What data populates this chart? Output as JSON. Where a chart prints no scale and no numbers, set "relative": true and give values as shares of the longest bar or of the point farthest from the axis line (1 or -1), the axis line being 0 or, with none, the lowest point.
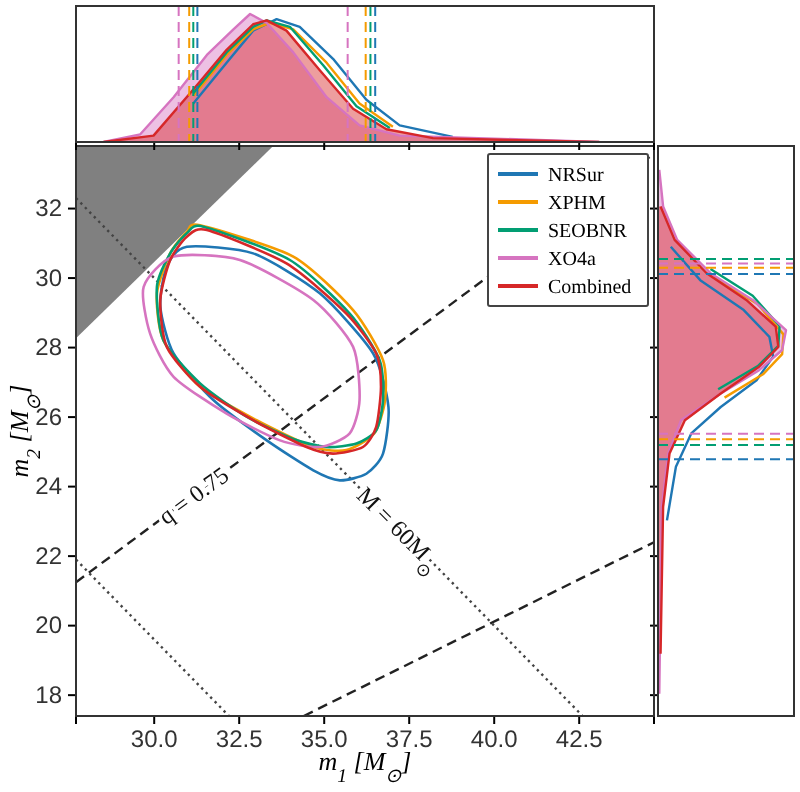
{
  "chart_data": [
    {
      "type": "line",
      "relative": true,
      "tick_labels": false,
      "legend": "bottom right",
      "xlim": [
        27.7,
        44.7
      ],
      "xticks": [
        30,
        32.5,
        35,
        37.5,
        40,
        42.5
      ],
      "series": [
        {
          "name": "NRSur",
          "color": "#1f77b4",
          "x": [
            31.15,
            32.13,
            32.91,
            33.6,
            34.28,
            35.26,
            36.24,
            37.22,
            38.78
          ],
          "values": [
            0.3,
            0.62,
            0.87,
            0.96,
            0.9,
            0.65,
            0.33,
            0.13,
            0.04
          ]
        },
        {
          "name": "XPHM",
          "color": "#f59b00",
          "x": [
            31.15,
            32.13,
            32.91,
            33.4,
            34.09,
            35.07,
            36.04,
            37.02
          ],
          "values": [
            0.36,
            0.68,
            0.88,
            0.93,
            0.88,
            0.62,
            0.3,
            0.12
          ]
        },
        {
          "name": "SEOBNR",
          "color": "#029e73",
          "x": [
            31.15,
            32.13,
            32.91,
            33.31,
            33.99,
            34.97,
            35.95,
            36.93
          ],
          "values": [
            0.38,
            0.7,
            0.9,
            0.95,
            0.9,
            0.6,
            0.28,
            0.11
          ]
        },
        {
          "name": "XO4a",
          "type": "area",
          "color": "#d674c0",
          "x": [
            28.51,
            29.59,
            30.57,
            31.55,
            32.33,
            32.82,
            33.31,
            34.09,
            35.07,
            36.04,
            37.22,
            43.09
          ],
          "values": [
            0,
            0.06,
            0.35,
            0.68,
            0.88,
            1,
            0.93,
            0.7,
            0.35,
            0.13,
            0.05,
            0
          ]
        },
        {
          "name": "Combined",
          "type": "area",
          "color": "#d62728",
          "x": [
            28.51,
            29.98,
            31.15,
            32.13,
            32.91,
            33.31,
            33.89,
            34.87,
            35.85,
            36.83,
            38.2,
            43.09
          ],
          "values": [
            0,
            0.05,
            0.41,
            0.72,
            0.92,
            0.95,
            0.87,
            0.56,
            0.26,
            0.1,
            0.03,
            0
          ]
        }
      ],
      "ref_lines": [
        {
          "axis": "x",
          "value": 30.72,
          "color": "#d674c0",
          "line_style": "dashed"
        },
        {
          "axis": "x",
          "value": 35.69,
          "color": "#d674c0",
          "line_style": "dashed"
        },
        {
          "axis": "x",
          "value": 31.03,
          "color": "#f59b00",
          "line_style": "dashed"
        },
        {
          "axis": "x",
          "value": 36.22,
          "color": "#f59b00",
          "line_style": "dashed"
        },
        {
          "axis": "x",
          "value": 31.15,
          "color": "#029e73",
          "line_style": "dashed"
        },
        {
          "axis": "x",
          "value": 36.36,
          "color": "#029e73",
          "line_style": "dashed"
        },
        {
          "axis": "x",
          "value": 31.27,
          "color": "#1f77b4",
          "line_style": "dashed"
        },
        {
          "axis": "x",
          "value": 36.5,
          "color": "#1f77b4",
          "line_style": "dashed"
        }
      ]
    },
    {
      "type": "line",
      "xlabel": "m$_{1}$ [M$_{⊙}$]",
      "ylabel": "m$_{2}$ [M$_{⊙}$]",
      "xlim": [
        27.7,
        44.7
      ],
      "ylim": [
        17.4,
        33.8
      ],
      "xticks": [
        {
          "value": 30,
          "label": "30.0"
        },
        {
          "value": 32.5,
          "label": "32.5"
        },
        {
          "value": 35,
          "label": "35.0"
        },
        {
          "value": 37.5,
          "label": "37.5"
        },
        {
          "value": 40,
          "label": "40.0"
        },
        {
          "value": 42.5,
          "label": "42.5"
        }
      ],
      "yticks": [
        18,
        20,
        22,
        24,
        26,
        28,
        30,
        32
      ],
      "series": [
        {
          "color": "#222222",
          "line_style": "dashed",
          "x": [
            27.7,
            44.7
          ],
          "values": [
            21.25,
            33.58
          ]
        },
        {
          "color": "#222222",
          "line_style": "dashed",
          "x": [
            34.4,
            44.7
          ],
          "values": [
            17.4,
            22.4
          ]
        },
        {
          "color": "#444444",
          "line_style": "dotted",
          "x": [
            27.7,
            42.6
          ],
          "values": [
            32.3,
            17.4
          ]
        },
        {
          "color": "#444444",
          "line_style": "dotted",
          "x": [
            27.7,
            32.2
          ],
          "values": [
            21.9,
            17.4
          ]
        }
      ],
      "annotations": [
        {
          "text": "q = 0.75",
          "x": 31.15,
          "y": 23.75
        },
        {
          "text": "M = 60M$_{⊙}$",
          "x": 37.22,
          "y": 22.78
        }
      ]
    },
    {
      "type": "line",
      "orientation": "horizontal",
      "relative": true,
      "tick_labels": false,
      "ylim": [
        17.4,
        33.8
      ],
      "yticks": [
        18,
        20,
        22,
        24,
        26,
        28,
        30,
        32
      ],
      "series": [
        {
          "color": "#1f77b4",
          "x": [
            30.9,
            29.94,
            29.08,
            28.31,
            27.74,
            27.06,
            26.29,
            25.53,
            24.57,
            23.03
          ],
          "values": [
            0.1,
            0.33,
            0.67,
            0.87,
            0.9,
            0.77,
            0.49,
            0.26,
            0.14,
            0.07
          ]
        },
        {
          "color": "#f59b00",
          "x": [
            30.02,
            29.25,
            28.38,
            27.81,
            27.23,
            26.56
          ],
          "values": [
            0.44,
            0.78,
            0.98,
            0.97,
            0.82,
            0.52
          ]
        },
        {
          "color": "#029e73",
          "x": [
            30.26,
            29.49,
            28.62,
            28.05,
            27.47,
            26.8
          ],
          "values": [
            0.41,
            0.74,
            0.95,
            0.94,
            0.78,
            0.47
          ]
        },
        {
          "type": "area",
          "color": "#d674c0",
          "x": [
            33.11,
            32.06,
            31.1,
            30.14,
            29.37,
            28.5,
            27.93,
            27.35,
            26.68,
            25.91,
            24.95,
            23.42,
            18.04
          ],
          "values": [
            0.01,
            0.04,
            0.15,
            0.41,
            0.74,
            1,
            0.97,
            0.79,
            0.49,
            0.18,
            0.08,
            0.03,
            0.01
          ]
        },
        {
          "type": "area",
          "color": "#d62728",
          "x": [
            32.06,
            31.1,
            30.14,
            29.37,
            28.6,
            28.02,
            27.45,
            26.68,
            25.91,
            24.95,
            23.42,
            19.19
          ],
          "values": [
            0.02,
            0.13,
            0.38,
            0.69,
            0.92,
            0.94,
            0.79,
            0.49,
            0.21,
            0.09,
            0.04,
            0.02
          ]
        }
      ],
      "ref_lines": [
        {
          "axis": "y",
          "value": 30.42,
          "color": "#d674c0",
          "line_style": "dashed"
        },
        {
          "axis": "y",
          "value": 25.52,
          "color": "#d674c0",
          "line_style": "dashed"
        },
        {
          "axis": "y",
          "value": 30.3,
          "color": "#f59b00",
          "line_style": "dashed"
        },
        {
          "axis": "y",
          "value": 25.36,
          "color": "#f59b00",
          "line_style": "dashed"
        },
        {
          "axis": "y",
          "value": 30.55,
          "color": "#029e73",
          "line_style": "dashed"
        },
        {
          "axis": "y",
          "value": 25.2,
          "color": "#029e73",
          "line_style": "dashed"
        },
        {
          "axis": "y",
          "value": 30.12,
          "color": "#1f77b4",
          "line_style": "dashed"
        },
        {
          "axis": "y",
          "value": 24.79,
          "color": "#1f77b4",
          "line_style": "dashed"
        }
      ]
    }
  ]
}
